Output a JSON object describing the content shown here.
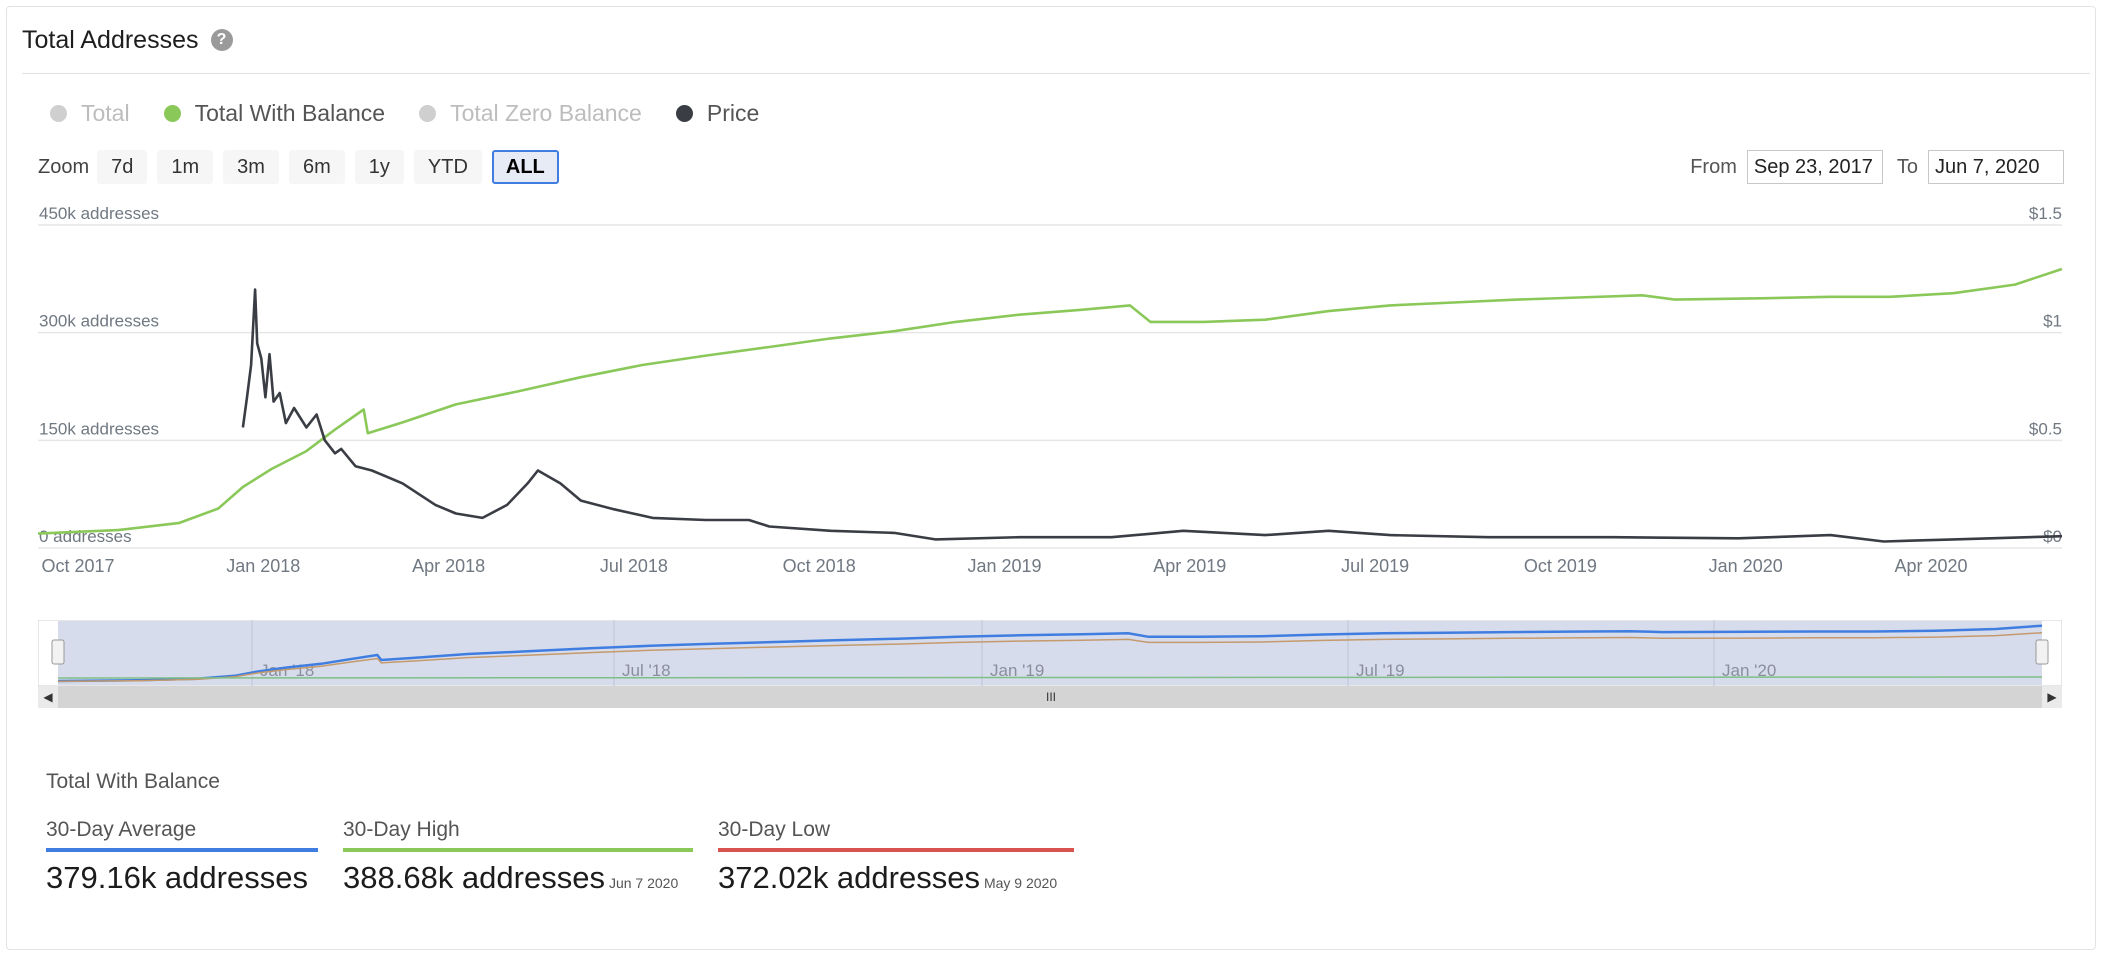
{
  "header": {
    "title": "Total Addresses",
    "help_icon": "?"
  },
  "legend": [
    {
      "label": "Total",
      "color": "#cfcfcf",
      "enabled": false
    },
    {
      "label": "Total With Balance",
      "color": "#8bc85a",
      "enabled": true
    },
    {
      "label": "Total Zero Balance",
      "color": "#cfcfcf",
      "enabled": false
    },
    {
      "label": "Price",
      "color": "#3a3d44",
      "enabled": true
    }
  ],
  "zoom": {
    "label": "Zoom",
    "buttons": [
      "7d",
      "1m",
      "3m",
      "6m",
      "1y",
      "YTD",
      "ALL"
    ],
    "active": "ALL"
  },
  "range": {
    "from_label": "From",
    "from_value": "Sep 23, 2017",
    "to_label": "To",
    "to_value": "Jun 7, 2020"
  },
  "colors": {
    "with_balance": "#8bc85a",
    "price": "#3a3d44",
    "grid": "#e6e6e6",
    "axis_text": "#707882",
    "nav_fill": "#d7dcec",
    "avg": "#3f7ee0",
    "low": "#d9534f"
  },
  "chart_data": {
    "type": "line",
    "x_range": [
      "2017-09-23",
      "2020-06-07"
    ],
    "x_tick_labels": [
      "Oct 2017",
      "Jan 2018",
      "Apr 2018",
      "Jul 2018",
      "Oct 2018",
      "Jan 2019",
      "Apr 2019",
      "Jul 2019",
      "Oct 2019",
      "Jan 2020",
      "Apr 2020"
    ],
    "y_left": {
      "ticks": [
        "0 addresses",
        "150k addresses",
        "300k addresses",
        "450k addresses"
      ],
      "range": [
        0,
        450000
      ]
    },
    "y_right": {
      "ticks": [
        "$0",
        "$0.5",
        "$1",
        "$1.5"
      ],
      "range": [
        0,
        1.5
      ]
    },
    "series": [
      {
        "name": "Total With Balance",
        "axis": "left",
        "points": [
          [
            "2017-09-23",
            20000
          ],
          [
            "2017-11-01",
            25000
          ],
          [
            "2017-12-01",
            35000
          ],
          [
            "2017-12-20",
            55000
          ],
          [
            "2018-01-01",
            85000
          ],
          [
            "2018-01-15",
            110000
          ],
          [
            "2018-02-01",
            135000
          ],
          [
            "2018-02-15",
            165000
          ],
          [
            "2018-03-01",
            193000
          ],
          [
            "2018-03-03",
            160000
          ],
          [
            "2018-03-20",
            175000
          ],
          [
            "2018-04-15",
            200000
          ],
          [
            "2018-05-15",
            218000
          ],
          [
            "2018-06-15",
            238000
          ],
          [
            "2018-07-15",
            255000
          ],
          [
            "2018-08-15",
            268000
          ],
          [
            "2018-09-15",
            280000
          ],
          [
            "2018-10-15",
            292000
          ],
          [
            "2018-11-15",
            302000
          ],
          [
            "2018-12-15",
            315000
          ],
          [
            "2019-01-15",
            325000
          ],
          [
            "2019-02-15",
            332000
          ],
          [
            "2019-03-10",
            338000
          ],
          [
            "2019-03-20",
            315000
          ],
          [
            "2019-04-15",
            315000
          ],
          [
            "2019-05-15",
            318000
          ],
          [
            "2019-06-15",
            330000
          ],
          [
            "2019-07-15",
            338000
          ],
          [
            "2019-08-15",
            342000
          ],
          [
            "2019-09-15",
            346000
          ],
          [
            "2019-10-15",
            349000
          ],
          [
            "2019-11-15",
            352000
          ],
          [
            "2019-12-01",
            346000
          ],
          [
            "2020-01-15",
            348000
          ],
          [
            "2020-02-15",
            350000
          ],
          [
            "2020-03-15",
            350000
          ],
          [
            "2020-04-15",
            355000
          ],
          [
            "2020-05-15",
            367000
          ],
          [
            "2020-06-07",
            388680
          ]
        ]
      },
      {
        "name": "Price",
        "axis": "right",
        "points": [
          [
            "2018-01-01",
            0.56
          ],
          [
            "2018-01-03",
            0.7
          ],
          [
            "2018-01-05",
            0.85
          ],
          [
            "2018-01-07",
            1.2
          ],
          [
            "2018-01-08",
            0.95
          ],
          [
            "2018-01-10",
            0.88
          ],
          [
            "2018-01-12",
            0.7
          ],
          [
            "2018-01-14",
            0.9
          ],
          [
            "2018-01-16",
            0.68
          ],
          [
            "2018-01-19",
            0.72
          ],
          [
            "2018-01-22",
            0.58
          ],
          [
            "2018-01-26",
            0.65
          ],
          [
            "2018-02-01",
            0.56
          ],
          [
            "2018-02-06",
            0.62
          ],
          [
            "2018-02-10",
            0.5
          ],
          [
            "2018-02-15",
            0.44
          ],
          [
            "2018-02-18",
            0.46
          ],
          [
            "2018-02-25",
            0.38
          ],
          [
            "2018-03-05",
            0.36
          ],
          [
            "2018-03-20",
            0.3
          ],
          [
            "2018-04-05",
            0.2
          ],
          [
            "2018-04-15",
            0.16
          ],
          [
            "2018-04-28",
            0.14
          ],
          [
            "2018-05-10",
            0.2
          ],
          [
            "2018-05-20",
            0.3
          ],
          [
            "2018-05-25",
            0.36
          ],
          [
            "2018-06-05",
            0.3
          ],
          [
            "2018-06-15",
            0.22
          ],
          [
            "2018-07-01",
            0.18
          ],
          [
            "2018-07-20",
            0.14
          ],
          [
            "2018-08-15",
            0.13
          ],
          [
            "2018-09-05",
            0.13
          ],
          [
            "2018-09-15",
            0.1
          ],
          [
            "2018-10-15",
            0.08
          ],
          [
            "2018-11-15",
            0.07
          ],
          [
            "2018-12-05",
            0.04
          ],
          [
            "2019-01-15",
            0.05
          ],
          [
            "2019-03-01",
            0.05
          ],
          [
            "2019-04-05",
            0.08
          ],
          [
            "2019-05-15",
            0.06
          ],
          [
            "2019-06-15",
            0.08
          ],
          [
            "2019-07-15",
            0.06
          ],
          [
            "2019-09-01",
            0.05
          ],
          [
            "2019-11-01",
            0.05
          ],
          [
            "2020-01-01",
            0.045
          ],
          [
            "2020-02-15",
            0.06
          ],
          [
            "2020-03-12",
            0.03
          ],
          [
            "2020-04-15",
            0.04
          ],
          [
            "2020-06-07",
            0.055
          ]
        ]
      }
    ],
    "navigator": {
      "x_tick_labels": [
        "Jan '18",
        "Jul '18",
        "Jan '19",
        "Jul '19",
        "Jan '20"
      ]
    }
  },
  "stats": {
    "title": "Total With Balance",
    "items": [
      {
        "label": "30-Day Average",
        "value": "379.16k addresses",
        "date": ""
      },
      {
        "label": "30-Day High",
        "value": "388.68k addresses",
        "date": "Jun 7 2020"
      },
      {
        "label": "30-Day Low",
        "value": "372.02k addresses",
        "date": "May 9 2020"
      }
    ]
  }
}
